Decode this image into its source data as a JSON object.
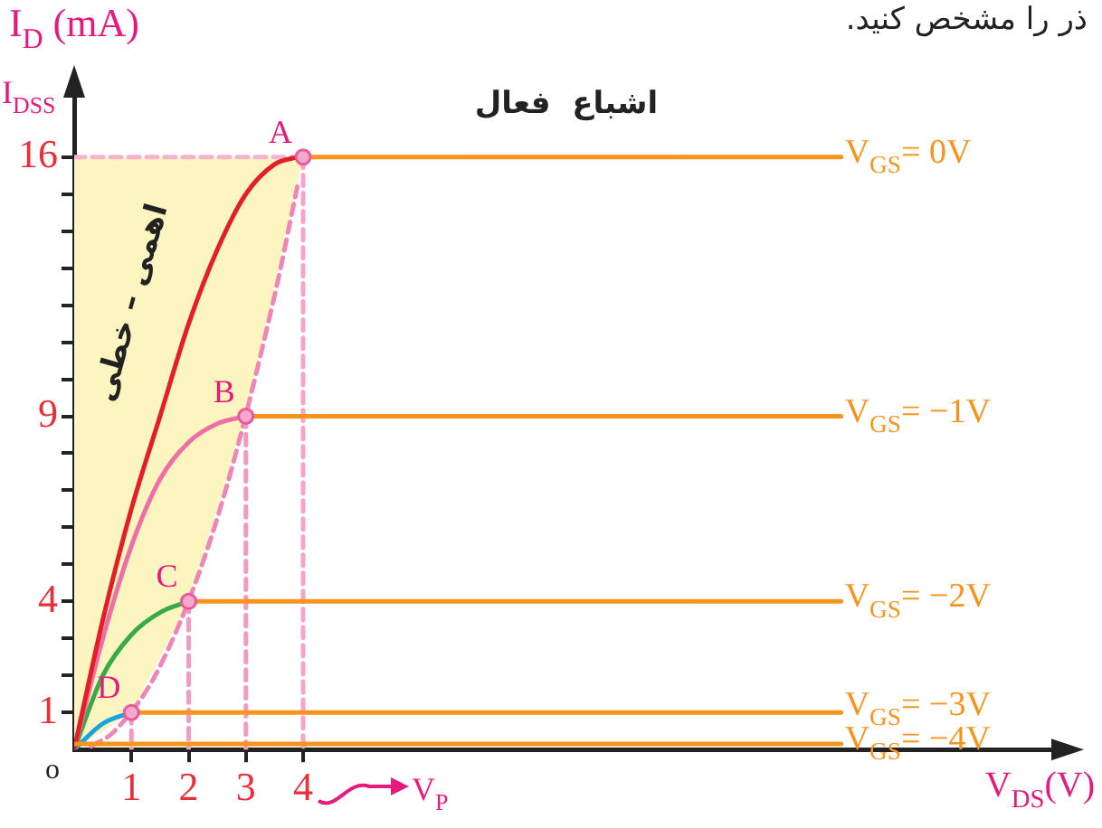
{
  "chart_data": {
    "type": "line",
    "ylabel": "I$_{D}$ (mA)",
    "xlabel": "V$_{DS}$(V)",
    "xlim": [
      0,
      17.2
    ],
    "ylim": [
      0,
      17.8
    ],
    "xticks": [
      1,
      2,
      3,
      4
    ],
    "yticks": [
      1,
      {
        "value": 2,
        "label": null
      },
      {
        "value": 3,
        "label": null
      },
      4,
      {
        "value": 5,
        "label": null
      },
      {
        "value": 6,
        "label": null
      },
      {
        "value": 7,
        "label": null
      },
      {
        "value": 8,
        "label": null
      },
      9,
      {
        "value": 10,
        "label": null
      },
      {
        "value": 11,
        "label": null
      },
      {
        "value": 12,
        "label": null
      },
      {
        "value": 13,
        "label": null
      },
      {
        "value": 14,
        "label": null
      },
      {
        "value": 15,
        "label": null
      },
      16
    ],
    "legend": false,
    "marker": "none",
    "series": [
      {
        "type": "area",
        "color": "#fdf5c0",
        "x": [
          0,
          0,
          1,
          2,
          3,
          4
        ],
        "values": [
          16,
          0,
          1,
          4,
          9,
          16
        ]
      },
      {
        "line_style": "dashed",
        "color": "#f5b3d1",
        "x": [
          0,
          4
        ],
        "values": [
          16,
          16
        ]
      },
      {
        "line_style": "dashed",
        "color": "#ef86b8",
        "x": [
          0.3,
          0.7,
          1.5,
          2.5,
          3.5,
          3.9
        ],
        "values": [
          0.09,
          0.49,
          2.25,
          6.25,
          12.25,
          15.21
        ]
      },
      {
        "line_style": "dashed",
        "color": "#f29ac2",
        "x": [
          1,
          1
        ],
        "values": [
          1,
          0
        ]
      },
      {
        "line_style": "dashed",
        "color": "#f29ac2",
        "x": [
          2,
          2
        ],
        "values": [
          4,
          0
        ]
      },
      {
        "line_style": "dashed",
        "color": "#f29ac2",
        "x": [
          3,
          3
        ],
        "values": [
          9,
          0
        ]
      },
      {
        "line_style": "dashed",
        "color": "#f7a3ca",
        "x": [
          4,
          4
        ],
        "values": [
          16,
          0
        ]
      },
      {
        "color": "#1aa3dc",
        "x": [
          0,
          0.5,
          1
        ],
        "values": [
          0,
          0.7,
          1
        ]
      },
      {
        "color": "#3aaa48",
        "x": [
          0,
          0.5,
          1,
          1.5,
          2
        ],
        "values": [
          0,
          2,
          3.1,
          3.7,
          4
        ]
      },
      {
        "color": "#ee6fa6",
        "x": [
          0,
          0.5,
          1,
          1.5,
          2,
          2.5,
          3
        ],
        "values": [
          0,
          3,
          5.5,
          7.3,
          8.3,
          8.8,
          9
        ]
      },
      {
        "color": "#e41e26",
        "x": [
          0,
          0.5,
          1,
          1.5,
          2,
          2.5,
          3,
          3.5,
          3.9
        ],
        "values": [
          0,
          3.5,
          6.5,
          9,
          11.5,
          13.5,
          15,
          15.8,
          16
        ]
      },
      {
        "name": "V$_{GS}$= 0V",
        "color": "#f7941d",
        "x": [
          4,
          13.4
        ],
        "values": [
          16,
          16
        ]
      },
      {
        "name": "V$_{GS}$= −1V",
        "color": "#f7941d",
        "x": [
          3,
          13.4
        ],
        "values": [
          9,
          9
        ]
      },
      {
        "name": "V$_{GS}$= −2V",
        "color": "#f7941d",
        "x": [
          2,
          13.4
        ],
        "values": [
          4,
          4
        ]
      },
      {
        "name": "V$_{GS}$= −3V",
        "color": "#f7941d",
        "x": [
          1,
          13.4
        ],
        "values": [
          1,
          1
        ]
      },
      {
        "name": "V$_{GS}$= −4V",
        "color": "#f7941d",
        "x": [
          0,
          13.4
        ],
        "values": [
          0.15,
          0.15
        ]
      },
      {
        "type": "scatter",
        "marker": "circle",
        "color": "#e85a9b",
        "x": [
          1,
          2,
          3,
          4
        ],
        "values": [
          1,
          4,
          9,
          16
        ]
      }
    ],
    "annotations": [
      {
        "text": "A",
        "x": 4,
        "y": 16
      },
      {
        "text": "B",
        "x": 3,
        "y": 9
      },
      {
        "text": "C",
        "x": 2,
        "y": 4
      },
      {
        "text": "D",
        "x": 1,
        "y": 1
      },
      "I$_{DSS}$",
      "اشباع  فعال",
      "اهمی – خطی",
      "o",
      "V$_{P}$",
      "ذر را مشخص کنید."
    ]
  }
}
